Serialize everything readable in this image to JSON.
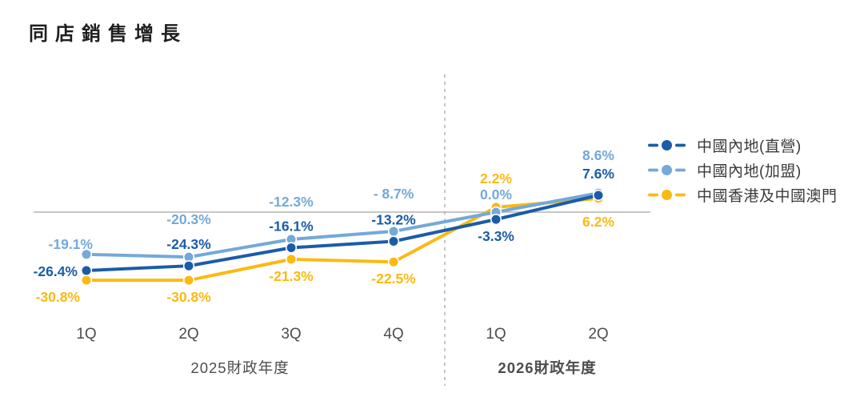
{
  "title": "同店銷售增長",
  "legend": {
    "items": [
      {
        "label": "中國內地(直營)",
        "color": "#1A5CA8"
      },
      {
        "label": "中國內地(加盟)",
        "color": "#74A9D9"
      },
      {
        "label": "中國香港及中國澳門",
        "color": "#FBBA12"
      }
    ]
  },
  "chart_data": {
    "type": "line",
    "x_groups": [
      {
        "year_label": "2025財政年度",
        "bold": false,
        "quarters": [
          "1Q",
          "2Q",
          "3Q",
          "4Q"
        ]
      },
      {
        "year_label": "2026財政年度",
        "bold": true,
        "quarters": [
          "1Q",
          "2Q"
        ]
      }
    ],
    "categories": [
      "FY2025 1Q",
      "FY2025 2Q",
      "FY2025 3Q",
      "FY2025 4Q",
      "FY2026 1Q",
      "FY2026 2Q"
    ],
    "series": [
      {
        "name": "中國內地(直營)",
        "color": "#1A5CA8",
        "values": [
          -26.4,
          -24.3,
          -16.1,
          -13.2,
          -3.3,
          7.6
        ],
        "labels": [
          "-26.4%",
          "-24.3%",
          "-16.1%",
          "-13.2%",
          "-3.3%",
          "7.6%"
        ],
        "label_pos": [
          "left",
          "above",
          "above",
          "above",
          "below",
          "above"
        ]
      },
      {
        "name": "中國內地(加盟)",
        "color": "#74A9D9",
        "values": [
          -19.1,
          -20.3,
          -12.3,
          -8.7,
          0.0,
          8.6
        ],
        "labels": [
          "-19.1%",
          "-20.3%",
          "-12.3%",
          "- 8.7%",
          "0.0%",
          "8.6%"
        ],
        "label_pos": [
          "upleft",
          "aboveFar",
          "aboveFar",
          "aboveFar",
          "aboveNear",
          "aboveFar"
        ]
      },
      {
        "name": "中國香港及中國澳門",
        "color": "#FBBA12",
        "values": [
          -30.8,
          -30.8,
          -21.3,
          -22.5,
          2.2,
          6.2
        ],
        "labels": [
          "-30.8%",
          "-30.8%",
          "-21.3%",
          "-22.5%",
          "2.2%",
          "6.2%"
        ],
        "label_pos": [
          "belowLeft",
          "below",
          "below",
          "below",
          "aboveMid",
          "belowFar"
        ]
      }
    ],
    "baseline_value": 0,
    "separator_after_index": 3,
    "ylim": [
      -35,
      12
    ],
    "grid": "zero-line-only",
    "legend_position": "right",
    "colors": {
      "zero_line": "#b4b4b4",
      "separator": "#a8a8a8",
      "axis_text": "#4d4d4d"
    }
  }
}
